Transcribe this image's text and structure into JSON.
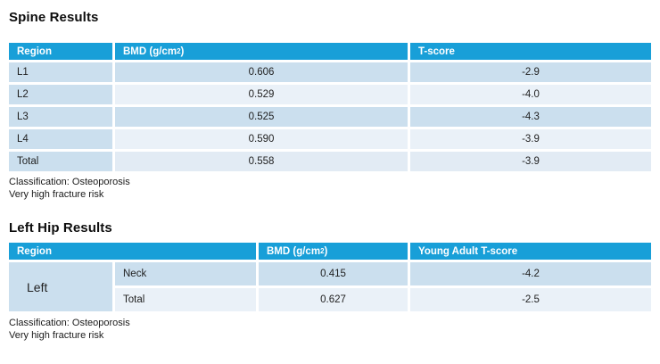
{
  "colors": {
    "header_bg": "#189fd8",
    "header_text": "#ffffff",
    "row_shaded": "#cbdfee",
    "row_light": "#eaf1f8",
    "row_total": "#e2ebf4",
    "body_text": "#1f1f1f"
  },
  "spine_section": {
    "title": "Spine Results",
    "table": {
      "headers": [
        "Region",
        "BMD (g/cm²)",
        "T-score"
      ],
      "rows": [
        {
          "region": "L1",
          "bmd": "0.606",
          "t_score": "-2.9"
        },
        {
          "region": "L2",
          "bmd": "0.529",
          "t_score": "-4.0"
        },
        {
          "region": "L3",
          "bmd": "0.525",
          "t_score": "-4.3"
        },
        {
          "region": "L4",
          "bmd": "0.590",
          "t_score": "-3.9"
        },
        {
          "region": "Total",
          "bmd": "0.558",
          "t_score": "-3.9"
        }
      ]
    },
    "classification": "Classification: Osteoporosis",
    "fracture_risk": "Very high fracture risk"
  },
  "hip_section": {
    "title": "Left Hip Results",
    "table": {
      "headers": [
        "Region",
        "BMD (g/cm²)",
        "Young Adult T-score"
      ],
      "side_label": "Left",
      "rows": [
        {
          "subregion": "Neck",
          "bmd": "0.415",
          "young_adult_t_score": "-4.2"
        },
        {
          "subregion": "Total",
          "bmd": "0.627",
          "young_adult_t_score": "-2.5"
        }
      ]
    },
    "classification": "Classification: Osteoporosis",
    "fracture_risk": "Very high fracture risk"
  }
}
